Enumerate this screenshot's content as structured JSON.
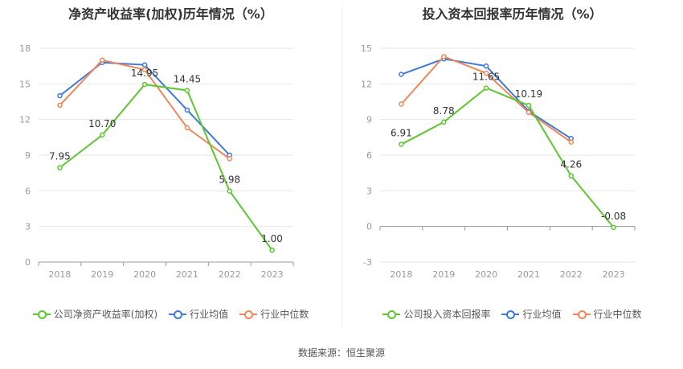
{
  "source": "数据来源：恒生聚源",
  "colors": {
    "company": "#5cc72e",
    "avg": "#3d79db",
    "median": "#f0875a",
    "grid": "#e6e6e6",
    "axis": "#999999",
    "text": "#666666"
  },
  "chart_data": [
    {
      "type": "line",
      "title": "净资产收益率(加权)历年情况（%）",
      "categories": [
        "2018",
        "2019",
        "2020",
        "2021",
        "2022",
        "2023"
      ],
      "ylim": [
        0,
        18
      ],
      "yticks": [
        0,
        3,
        6,
        9,
        12,
        15,
        18
      ],
      "grid": true,
      "legend_position": "bottom",
      "series": [
        {
          "name": "公司净资产收益率(加权)",
          "color_key": "company",
          "values": [
            7.95,
            10.7,
            14.95,
            14.45,
            5.98,
            1.0
          ],
          "labels": [
            "7.95",
            "10.70",
            "14.95",
            "14.45",
            "5.98",
            "1.00"
          ]
        },
        {
          "name": "行业均值",
          "color_key": "avg",
          "values": [
            14.0,
            16.8,
            16.6,
            12.8,
            9.0,
            null
          ]
        },
        {
          "name": "行业中位数",
          "color_key": "median",
          "values": [
            13.2,
            17.0,
            16.2,
            11.3,
            8.7,
            null
          ]
        }
      ]
    },
    {
      "type": "line",
      "title": "投入资本回报率历年情况（%）",
      "categories": [
        "2018",
        "2019",
        "2020",
        "2021",
        "2022",
        "2023"
      ],
      "ylim": [
        -3,
        15
      ],
      "yticks": [
        -3,
        0,
        3,
        6,
        9,
        12,
        15
      ],
      "grid": true,
      "legend_position": "bottom",
      "series": [
        {
          "name": "公司投入资本回报率",
          "color_key": "company",
          "values": [
            6.91,
            8.78,
            11.65,
            10.19,
            4.26,
            -0.08
          ],
          "labels": [
            "6.91",
            "8.78",
            "11.65",
            "10.19",
            "4.26",
            "-0.08"
          ]
        },
        {
          "name": "行业均值",
          "color_key": "avg",
          "values": [
            12.8,
            14.1,
            13.5,
            9.7,
            7.4,
            null
          ]
        },
        {
          "name": "行业中位数",
          "color_key": "median",
          "values": [
            10.3,
            14.3,
            12.9,
            9.6,
            7.1,
            null
          ]
        }
      ]
    }
  ]
}
